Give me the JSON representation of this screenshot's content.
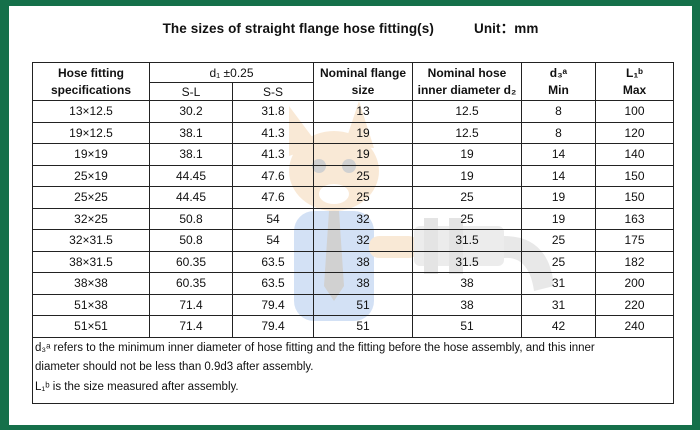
{
  "title": "The sizes of straight flange hose fitting(s)",
  "unit": "Unit：mm",
  "headers": {
    "spec": "Hose fitting specifications",
    "d1": "d₁ ±0.25",
    "sl": "S-L",
    "ss": "S-S",
    "flange": "Nominal flange size",
    "inner": "Nominal hose inner diameter d₂",
    "d3": "d₃ᵃ",
    "d3_sub": "Min",
    "l1": "L₁ᵇ",
    "l1_sub": "Max"
  },
  "rows": [
    {
      "spec": "13×12.5",
      "sl": "30.2",
      "ss": "31.8",
      "flange": "13",
      "inner": "12.5",
      "d3": "8",
      "l1": "100"
    },
    {
      "spec": "19×12.5",
      "sl": "38.1",
      "ss": "41.3",
      "flange": "19",
      "inner": "12.5",
      "d3": "8",
      "l1": "120"
    },
    {
      "spec": "19×19",
      "sl": "38.1",
      "ss": "41.3",
      "flange": "19",
      "inner": "19",
      "d3": "14",
      "l1": "140"
    },
    {
      "spec": "25×19",
      "sl": "44.45",
      "ss": "47.6",
      "flange": "25",
      "inner": "19",
      "d3": "14",
      "l1": "150"
    },
    {
      "spec": "25×25",
      "sl": "44.45",
      "ss": "47.6",
      "flange": "25",
      "inner": "25",
      "d3": "19",
      "l1": "150"
    },
    {
      "spec": "32×25",
      "sl": "50.8",
      "ss": "54",
      "flange": "32",
      "inner": "25",
      "d3": "19",
      "l1": "163"
    },
    {
      "spec": "32×31.5",
      "sl": "50.8",
      "ss": "54",
      "flange": "32",
      "inner": "31.5",
      "d3": "25",
      "l1": "175"
    },
    {
      "spec": "38×31.5",
      "sl": "60.35",
      "ss": "63.5",
      "flange": "38",
      "inner": "31.5",
      "d3": "25",
      "l1": "182"
    },
    {
      "spec": "38×38",
      "sl": "60.35",
      "ss": "63.5",
      "flange": "38",
      "inner": "38",
      "d3": "31",
      "l1": "200"
    },
    {
      "spec": "51×38",
      "sl": "71.4",
      "ss": "79.4",
      "flange": "51",
      "inner": "38",
      "d3": "31",
      "l1": "220"
    },
    {
      "spec": "51×51",
      "sl": "71.4",
      "ss": "79.4",
      "flange": "51",
      "inner": "51",
      "d3": "42",
      "l1": "240"
    }
  ],
  "notes": {
    "line1": "d₃ᵃ refers to the minimum inner diameter of hose fitting and the fitting before the hose assembly, and this inner",
    "line2": "diameter should not be less than 0.9d3 after assembly.",
    "line3": "L₁ᵇ is the size measured after assembly."
  },
  "colors": {
    "border_green": "#15704a",
    "watermark_orange": "#e8a04a",
    "watermark_blue": "#3a7bd5"
  },
  "icons": {
    "watermark": "cartoon-mascot-with-hose-fitting"
  }
}
